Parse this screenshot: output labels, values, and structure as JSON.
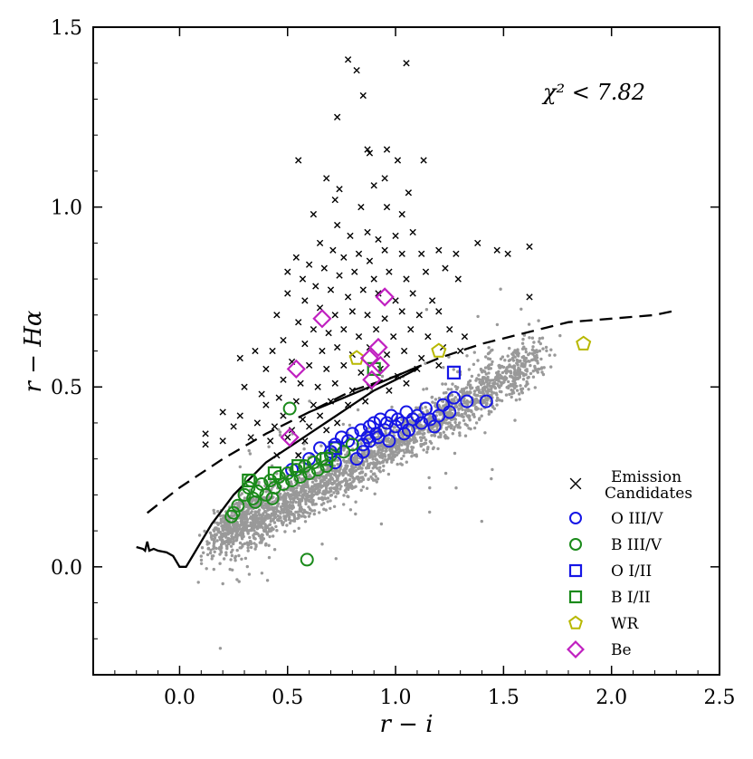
{
  "chart_data": {
    "type": "scatter",
    "xlabel": "r − i",
    "ylabel": "r − Hα",
    "xlim": [
      -0.4,
      2.5
    ],
    "ylim": [
      -0.3,
      1.5
    ],
    "xticks": [
      "0.0",
      "0.5",
      "1.0",
      "1.5",
      "2.0",
      "2.5"
    ],
    "xtick_values": [
      0.0,
      0.5,
      1.0,
      1.5,
      2.0,
      2.5
    ],
    "yticks": [
      "0.0",
      "0.5",
      "1.0",
      "1.5"
    ],
    "ytick_values": [
      0.0,
      0.5,
      1.0,
      1.5
    ],
    "annotation": "χ² < 7.82",
    "legend_position": "lower-right",
    "legend": [
      {
        "label": "Emission",
        "label2": "Candidates",
        "marker": "x",
        "color": "#000000"
      },
      {
        "label": "O III/V",
        "marker": "circle",
        "color": "#1515e6"
      },
      {
        "label": "B III/V",
        "marker": "circle",
        "color": "#1a8a1a"
      },
      {
        "label": "O I/II",
        "marker": "square",
        "color": "#1515e6"
      },
      {
        "label": "B I/II",
        "marker": "square",
        "color": "#1a8a1a"
      },
      {
        "label": "WR",
        "marker": "pentagon",
        "color": "#b8b800"
      },
      {
        "label": "Be",
        "marker": "diamond",
        "color": "#c020c0"
      }
    ],
    "background_field_color": "#999999",
    "series": [
      {
        "name": "Emission Candidates",
        "marker": "x",
        "color": "#000000",
        "points": [
          [
            0.78,
            1.41
          ],
          [
            0.82,
            1.38
          ],
          [
            1.05,
            1.4
          ],
          [
            0.85,
            1.31
          ],
          [
            0.73,
            1.25
          ],
          [
            0.87,
            1.16
          ],
          [
            0.88,
            1.15
          ],
          [
            0.96,
            1.16
          ],
          [
            1.01,
            1.13
          ],
          [
            1.13,
            1.13
          ],
          [
            0.55,
            1.13
          ],
          [
            0.68,
            1.08
          ],
          [
            0.74,
            1.05
          ],
          [
            0.9,
            1.06
          ],
          [
            0.95,
            1.08
          ],
          [
            1.06,
            1.04
          ],
          [
            0.72,
            1.02
          ],
          [
            0.84,
            1.0
          ],
          [
            0.96,
            1.0
          ],
          [
            1.03,
            0.98
          ],
          [
            0.62,
            0.98
          ],
          [
            0.73,
            0.95
          ],
          [
            0.79,
            0.92
          ],
          [
            0.87,
            0.93
          ],
          [
            0.92,
            0.91
          ],
          [
            1.0,
            0.92
          ],
          [
            1.08,
            0.93
          ],
          [
            0.65,
            0.9
          ],
          [
            0.71,
            0.88
          ],
          [
            0.76,
            0.86
          ],
          [
            0.83,
            0.87
          ],
          [
            0.88,
            0.85
          ],
          [
            0.95,
            0.88
          ],
          [
            1.03,
            0.87
          ],
          [
            1.12,
            0.87
          ],
          [
            1.2,
            0.88
          ],
          [
            0.54,
            0.86
          ],
          [
            0.6,
            0.84
          ],
          [
            0.67,
            0.83
          ],
          [
            0.74,
            0.81
          ],
          [
            0.81,
            0.82
          ],
          [
            0.9,
            0.8
          ],
          [
            0.97,
            0.82
          ],
          [
            1.05,
            0.8
          ],
          [
            1.14,
            0.82
          ],
          [
            1.23,
            0.83
          ],
          [
            1.28,
            0.87
          ],
          [
            1.38,
            0.9
          ],
          [
            1.47,
            0.88
          ],
          [
            1.52,
            0.87
          ],
          [
            1.62,
            0.89
          ],
          [
            0.5,
            0.82
          ],
          [
            0.57,
            0.8
          ],
          [
            0.63,
            0.78
          ],
          [
            0.7,
            0.77
          ],
          [
            0.78,
            0.75
          ],
          [
            0.85,
            0.77
          ],
          [
            0.92,
            0.76
          ],
          [
            1.0,
            0.74
          ],
          [
            1.08,
            0.76
          ],
          [
            1.17,
            0.74
          ],
          [
            1.29,
            0.8
          ],
          [
            0.5,
            0.76
          ],
          [
            0.58,
            0.74
          ],
          [
            0.65,
            0.72
          ],
          [
            0.72,
            0.7
          ],
          [
            0.8,
            0.71
          ],
          [
            0.87,
            0.7
          ],
          [
            0.95,
            0.69
          ],
          [
            1.03,
            0.71
          ],
          [
            1.11,
            0.7
          ],
          [
            1.2,
            0.71
          ],
          [
            1.62,
            0.75
          ],
          [
            0.45,
            0.7
          ],
          [
            0.55,
            0.68
          ],
          [
            0.62,
            0.66
          ],
          [
            0.69,
            0.65
          ],
          [
            0.76,
            0.66
          ],
          [
            0.83,
            0.64
          ],
          [
            0.91,
            0.66
          ],
          [
            0.99,
            0.64
          ],
          [
            1.07,
            0.66
          ],
          [
            1.15,
            0.64
          ],
          [
            1.25,
            0.66
          ],
          [
            0.48,
            0.63
          ],
          [
            0.58,
            0.62
          ],
          [
            0.66,
            0.6
          ],
          [
            0.73,
            0.61
          ],
          [
            0.8,
            0.59
          ],
          [
            0.88,
            0.61
          ],
          [
            0.96,
            0.59
          ],
          [
            1.04,
            0.6
          ],
          [
            1.12,
            0.58
          ],
          [
            1.22,
            0.61
          ],
          [
            1.32,
            0.64
          ],
          [
            0.35,
            0.6
          ],
          [
            0.43,
            0.6
          ],
          [
            0.52,
            0.57
          ],
          [
            0.6,
            0.56
          ],
          [
            0.68,
            0.55
          ],
          [
            0.76,
            0.56
          ],
          [
            0.84,
            0.54
          ],
          [
            0.93,
            0.55
          ],
          [
            1.01,
            0.53
          ],
          [
            1.1,
            0.55
          ],
          [
            1.2,
            0.56
          ],
          [
            1.3,
            0.6
          ],
          [
            0.28,
            0.58
          ],
          [
            0.4,
            0.55
          ],
          [
            0.48,
            0.52
          ],
          [
            0.56,
            0.51
          ],
          [
            0.64,
            0.5
          ],
          [
            0.72,
            0.51
          ],
          [
            0.8,
            0.49
          ],
          [
            0.88,
            0.5
          ],
          [
            0.97,
            0.49
          ],
          [
            1.05,
            0.51
          ],
          [
            0.3,
            0.5
          ],
          [
            0.38,
            0.48
          ],
          [
            0.46,
            0.47
          ],
          [
            0.54,
            0.46
          ],
          [
            0.62,
            0.45
          ],
          [
            0.7,
            0.46
          ],
          [
            0.78,
            0.45
          ],
          [
            0.86,
            0.46
          ],
          [
            0.4,
            0.45
          ],
          [
            0.48,
            0.42
          ],
          [
            0.57,
            0.41
          ],
          [
            0.65,
            0.42
          ],
          [
            0.73,
            0.4
          ],
          [
            0.2,
            0.43
          ],
          [
            0.28,
            0.42
          ],
          [
            0.36,
            0.4
          ],
          [
            0.44,
            0.39
          ],
          [
            0.52,
            0.38
          ],
          [
            0.6,
            0.39
          ],
          [
            0.68,
            0.38
          ],
          [
            0.25,
            0.39
          ],
          [
            0.33,
            0.36
          ],
          [
            0.42,
            0.35
          ],
          [
            0.5,
            0.36
          ],
          [
            0.58,
            0.35
          ],
          [
            0.12,
            0.37
          ],
          [
            0.2,
            0.35
          ],
          [
            0.12,
            0.34
          ],
          [
            0.45,
            0.31
          ],
          [
            0.55,
            0.31
          ]
        ]
      },
      {
        "name": "O III/V",
        "marker": "circle",
        "color": "#1515e6",
        "points": [
          [
            0.52,
            0.27
          ],
          [
            0.6,
            0.3
          ],
          [
            0.65,
            0.33
          ],
          [
            0.7,
            0.32
          ],
          [
            0.72,
            0.34
          ],
          [
            0.75,
            0.36
          ],
          [
            0.78,
            0.35
          ],
          [
            0.8,
            0.37
          ],
          [
            0.82,
            0.3
          ],
          [
            0.84,
            0.38
          ],
          [
            0.85,
            0.32
          ],
          [
            0.87,
            0.36
          ],
          [
            0.88,
            0.39
          ],
          [
            0.9,
            0.4
          ],
          [
            0.91,
            0.37
          ],
          [
            0.93,
            0.41
          ],
          [
            0.95,
            0.38
          ],
          [
            0.96,
            0.4
          ],
          [
            0.98,
            0.42
          ],
          [
            1.0,
            0.39
          ],
          [
            1.01,
            0.41
          ],
          [
            1.03,
            0.4
          ],
          [
            1.05,
            0.43
          ],
          [
            1.06,
            0.38
          ],
          [
            1.08,
            0.41
          ],
          [
            1.1,
            0.42
          ],
          [
            1.12,
            0.4
          ],
          [
            1.14,
            0.44
          ],
          [
            1.16,
            0.41
          ],
          [
            1.18,
            0.39
          ],
          [
            1.2,
            0.42
          ],
          [
            1.22,
            0.45
          ],
          [
            1.25,
            0.43
          ],
          [
            1.27,
            0.47
          ],
          [
            1.33,
            0.46
          ],
          [
            1.42,
            0.46
          ],
          [
            0.85,
            0.34
          ],
          [
            0.92,
            0.36
          ],
          [
            0.97,
            0.35
          ],
          [
            1.04,
            0.37
          ],
          [
            0.72,
            0.29
          ],
          [
            0.88,
            0.35
          ]
        ]
      },
      {
        "name": "B III/V",
        "marker": "circle",
        "color": "#1a8a1a",
        "points": [
          [
            0.25,
            0.15
          ],
          [
            0.27,
            0.17
          ],
          [
            0.3,
            0.2
          ],
          [
            0.32,
            0.22
          ],
          [
            0.34,
            0.19
          ],
          [
            0.36,
            0.21
          ],
          [
            0.38,
            0.23
          ],
          [
            0.4,
            0.2
          ],
          [
            0.42,
            0.24
          ],
          [
            0.44,
            0.22
          ],
          [
            0.46,
            0.25
          ],
          [
            0.48,
            0.23
          ],
          [
            0.5,
            0.26
          ],
          [
            0.52,
            0.24
          ],
          [
            0.54,
            0.27
          ],
          [
            0.56,
            0.25
          ],
          [
            0.58,
            0.28
          ],
          [
            0.6,
            0.26
          ],
          [
            0.62,
            0.29
          ],
          [
            0.64,
            0.27
          ],
          [
            0.66,
            0.3
          ],
          [
            0.68,
            0.28
          ],
          [
            0.7,
            0.31
          ],
          [
            0.72,
            0.33
          ],
          [
            0.76,
            0.32
          ],
          [
            0.8,
            0.34
          ],
          [
            0.51,
            0.44
          ],
          [
            0.59,
            0.02
          ],
          [
            0.24,
            0.14
          ],
          [
            0.33,
            0.24
          ],
          [
            0.43,
            0.19
          ],
          [
            0.35,
            0.18
          ]
        ]
      },
      {
        "name": "O I/II",
        "marker": "square",
        "color": "#1515e6",
        "points": [
          [
            1.27,
            0.54
          ],
          [
            0.72,
            0.33
          ]
        ]
      },
      {
        "name": "B I/II",
        "marker": "square",
        "color": "#1a8a1a",
        "points": [
          [
            0.32,
            0.24
          ],
          [
            0.44,
            0.26
          ],
          [
            0.55,
            0.28
          ],
          [
            0.68,
            0.3
          ],
          [
            0.9,
            0.55
          ]
        ]
      },
      {
        "name": "WR",
        "marker": "pentagon",
        "color": "#b8b800",
        "points": [
          [
            1.87,
            0.62
          ],
          [
            1.2,
            0.6
          ],
          [
            0.82,
            0.58
          ]
        ]
      },
      {
        "name": "Be",
        "marker": "diamond",
        "color": "#c020c0",
        "points": [
          [
            0.95,
            0.75
          ],
          [
            0.66,
            0.69
          ],
          [
            0.92,
            0.61
          ],
          [
            0.88,
            0.58
          ],
          [
            0.93,
            0.56
          ],
          [
            0.54,
            0.55
          ],
          [
            0.89,
            0.52
          ],
          [
            0.51,
            0.36
          ]
        ]
      }
    ],
    "lines": [
      {
        "name": "unreddened main sequence",
        "style": "solid",
        "color": "#000000",
        "points": [
          [
            -0.2,
            0.055
          ],
          [
            -0.17,
            0.05
          ],
          [
            -0.16,
            0.045
          ],
          [
            -0.15,
            0.07
          ],
          [
            -0.14,
            0.045
          ],
          [
            -0.12,
            0.05
          ],
          [
            -0.1,
            0.045
          ],
          [
            -0.06,
            0.04
          ],
          [
            -0.03,
            0.03
          ],
          [
            0.0,
            0.0
          ],
          [
            0.03,
            0.0
          ],
          [
            0.06,
            0.03
          ],
          [
            0.1,
            0.07
          ],
          [
            0.15,
            0.12
          ],
          [
            0.2,
            0.16
          ],
          [
            0.25,
            0.2
          ],
          [
            0.3,
            0.23
          ],
          [
            0.35,
            0.26
          ],
          [
            0.4,
            0.29
          ],
          [
            0.5,
            0.33
          ],
          [
            0.6,
            0.37
          ],
          [
            0.7,
            0.41
          ],
          [
            0.8,
            0.45
          ],
          [
            0.9,
            0.49
          ],
          [
            1.0,
            0.52
          ],
          [
            1.1,
            0.55
          ]
        ]
      },
      {
        "name": "emission selection boundary",
        "style": "dashed",
        "color": "#000000",
        "points": [
          [
            -0.15,
            0.15
          ],
          [
            0.0,
            0.22
          ],
          [
            0.2,
            0.3
          ],
          [
            0.4,
            0.37
          ],
          [
            0.6,
            0.43
          ],
          [
            0.8,
            0.49
          ],
          [
            1.0,
            0.53
          ],
          [
            1.2,
            0.58
          ],
          [
            1.4,
            0.62
          ],
          [
            1.6,
            0.65
          ],
          [
            1.8,
            0.68
          ],
          [
            2.0,
            0.69
          ],
          [
            2.2,
            0.7
          ],
          [
            2.28,
            0.71
          ]
        ]
      },
      {
        "name": "reddening track",
        "style": "solid",
        "color": "#000000",
        "points": [
          [
            0.6,
            0.43
          ],
          [
            1.12,
            0.56
          ]
        ]
      }
    ]
  }
}
